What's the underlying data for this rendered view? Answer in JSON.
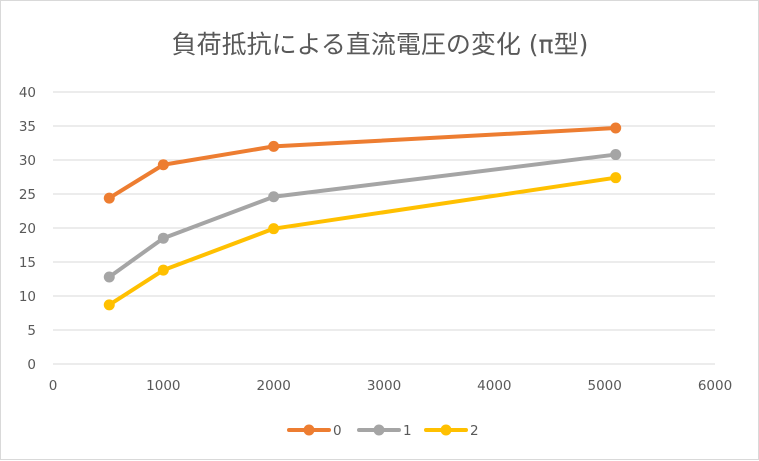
{
  "chart_data": {
    "type": "line",
    "title": "負荷抵抗による直流電圧の変化 (π型)",
    "xlabel": "",
    "ylabel": "",
    "xlim": [
      0,
      6000
    ],
    "ylim": [
      0,
      40
    ],
    "x_ticks": [
      0,
      1000,
      2000,
      3000,
      4000,
      5000,
      6000
    ],
    "y_ticks": [
      0,
      5,
      10,
      15,
      20,
      25,
      30,
      35,
      40
    ],
    "grid": "horizontal",
    "legend_position": "bottom",
    "series": [
      {
        "name": "0",
        "color": "#ED7D31",
        "x": [
          510,
          1000,
          2000,
          5100
        ],
        "y": [
          24.4,
          29.3,
          32.0,
          34.7
        ]
      },
      {
        "name": "1",
        "color": "#A5A5A5",
        "x": [
          510,
          1000,
          2000,
          5100
        ],
        "y": [
          12.8,
          18.5,
          24.6,
          30.8
        ]
      },
      {
        "name": "2",
        "color": "#FFC000",
        "x": [
          510,
          1000,
          2000,
          5100
        ],
        "y": [
          8.7,
          13.8,
          19.9,
          27.4
        ]
      }
    ]
  }
}
